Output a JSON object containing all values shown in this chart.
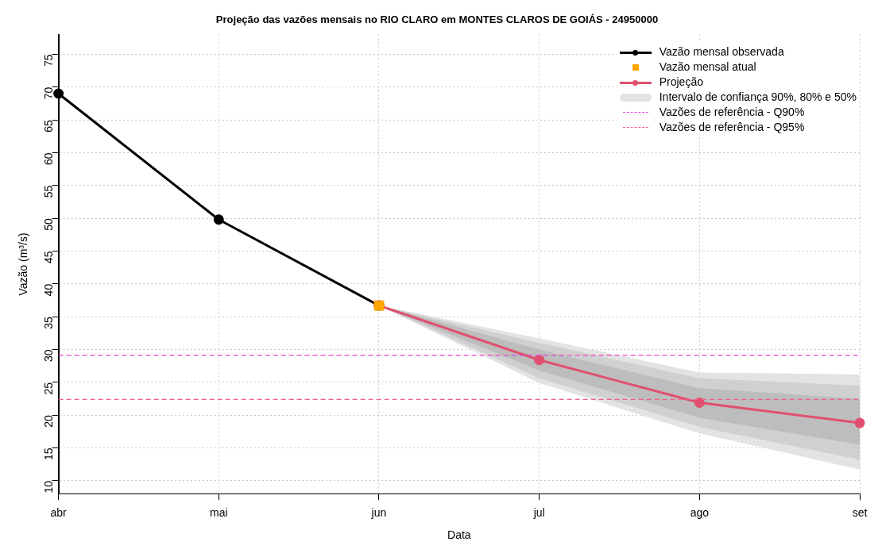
{
  "chart_data": {
    "type": "line",
    "title": "Projeção das vazões mensais no RIO CLARO em MONTES CLAROS DE GOIÁS - 24950000",
    "xlabel": "Data",
    "ylabel": "Vazão (m³/s)",
    "categories": [
      "abr",
      "mai",
      "jun",
      "jul",
      "ago",
      "set"
    ],
    "series": [
      {
        "name": "Vazão mensal observada",
        "color": "#000000",
        "marker": "circle",
        "values": [
          69,
          49.8,
          36.7,
          null,
          null,
          null
        ]
      },
      {
        "name": "Vazão mensal atual",
        "type": "scatter",
        "color": "#ffa500",
        "marker": "square",
        "values": [
          null,
          null,
          36.7,
          null,
          null,
          null
        ]
      },
      {
        "name": "Projeção",
        "color": "#e0506e",
        "marker": "circle",
        "values": [
          null,
          null,
          36.7,
          28.4,
          21.9,
          18.8
        ]
      },
      {
        "name": "Intervalo de confiança 90%, 80% e 50%",
        "color": "#e3e3e3",
        "values": [
          null,
          null,
          null,
          null,
          null,
          null
        ],
        "lower": [
          null,
          null,
          36.7,
          24.9,
          17.2,
          11.7
        ],
        "upper": [
          null,
          null,
          36.7,
          31.7,
          26.5,
          26.2
        ]
      },
      {
        "color": "#d0d0d0",
        "values": [
          null,
          null,
          null,
          null,
          null,
          null
        ],
        "lower": [
          null,
          null,
          36.7,
          25.6,
          18.2,
          13.2
        ],
        "upper": [
          null,
          null,
          36.7,
          31,
          25.6,
          24.5
        ]
      },
      {
        "color": "#bdbdbd",
        "values": [
          null,
          null,
          null,
          null,
          null,
          null
        ],
        "lower": [
          null,
          null,
          36.7,
          26.8,
          19.6,
          15.5
        ],
        "upper": [
          null,
          null,
          36.7,
          30,
          24.1,
          22.5
        ]
      }
    ],
    "ref_lines": [
      {
        "axis": "y",
        "value": 29.1,
        "label": "Vazões de referência - Q90%",
        "color": "#e040e0",
        "line_style": "dashed"
      },
      {
        "axis": "y",
        "value": 22.4,
        "label": "Vazões de referência - Q95%",
        "color": "#f06080",
        "line_style": "dashed"
      }
    ],
    "ylim": [
      8,
      78
    ],
    "yticks": [
      10,
      15,
      20,
      25,
      30,
      35,
      40,
      45,
      50,
      55,
      60,
      65,
      70,
      75
    ],
    "grid": true,
    "legend": "top right"
  }
}
